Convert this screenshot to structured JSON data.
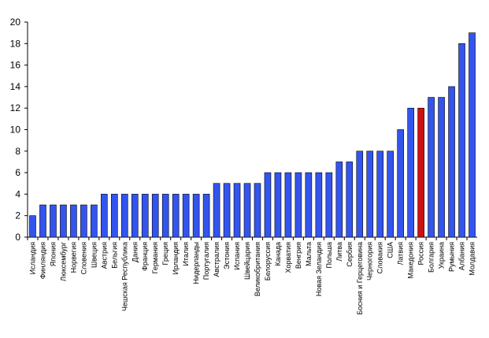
{
  "chart_data": {
    "type": "bar",
    "categories": [
      "Исландия",
      "Финляндия",
      "Япония",
      "Люксембург",
      "Норвегия",
      "Словения",
      "Швеция",
      "Австрия",
      "Бельгия",
      "Чешская Республика",
      "Дания",
      "Франция",
      "Германия",
      "Греция",
      "Ирландия",
      "Италия",
      "Нидерланды",
      "Португалия",
      "Австралия",
      "Эстония",
      "Испания",
      "Швейцария",
      "Великобритания",
      "Белоруссия",
      "Канада",
      "Хорватия",
      "Венгрия",
      "Мальта",
      "Новая Зеландия",
      "Польша",
      "Литва",
      "Сербия",
      "Босния и Герцеговина",
      "Черногория",
      "Словакия",
      "США",
      "Латвия",
      "Македония",
      "Россия",
      "Болгария",
      "Украина",
      "Румыния",
      "Албания",
      "Молдавия"
    ],
    "values": [
      2,
      3,
      3,
      3,
      3,
      3,
      3,
      4,
      4,
      4,
      4,
      4,
      4,
      4,
      4,
      4,
      4,
      4,
      5,
      5,
      5,
      5,
      5,
      6,
      6,
      6,
      6,
      6,
      6,
      6,
      7,
      7,
      8,
      8,
      8,
      8,
      10,
      12,
      12,
      13,
      13,
      14,
      18,
      19
    ],
    "colors": [
      "#3355ee",
      "#3355ee",
      "#3355ee",
      "#3355ee",
      "#3355ee",
      "#3355ee",
      "#3355ee",
      "#3355ee",
      "#3355ee",
      "#3355ee",
      "#3355ee",
      "#3355ee",
      "#3355ee",
      "#3355ee",
      "#3355ee",
      "#3355ee",
      "#3355ee",
      "#3355ee",
      "#3355ee",
      "#3355ee",
      "#3355ee",
      "#3355ee",
      "#3355ee",
      "#3355ee",
      "#3355ee",
      "#3355ee",
      "#3355ee",
      "#3355ee",
      "#3355ee",
      "#3355ee",
      "#3355ee",
      "#3355ee",
      "#3355ee",
      "#3355ee",
      "#3355ee",
      "#3355ee",
      "#3355ee",
      "#3355ee",
      "#cc1111",
      "#3355ee",
      "#3355ee",
      "#3355ee",
      "#3355ee",
      "#3355ee"
    ],
    "ylim": [
      0,
      20
    ],
    "yticks": [
      0,
      2,
      4,
      6,
      8,
      10,
      12,
      14,
      16,
      18,
      20
    ]
  }
}
